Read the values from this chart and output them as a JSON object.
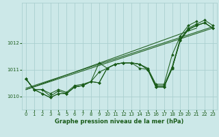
{
  "background_color": "#cce8e8",
  "grid_color": "#aacfcf",
  "line_color": "#1a5c1a",
  "title": "Graphe pression niveau de la mer (hPa)",
  "xlim": [
    -0.5,
    23.5
  ],
  "ylim": [
    1009.5,
    1013.5
  ],
  "yticks": [
    1010,
    1011,
    1012
  ],
  "xticks": [
    0,
    1,
    2,
    3,
    4,
    5,
    6,
    7,
    8,
    9,
    10,
    11,
    12,
    13,
    14,
    15,
    16,
    17,
    18,
    19,
    20,
    21,
    22,
    23
  ],
  "series": [
    [
      1010.65,
      1010.25,
      1010.25,
      1010.1,
      1010.25,
      1010.15,
      1010.4,
      1010.45,
      1010.55,
      1011.25,
      1011.05,
      1011.2,
      1011.25,
      1011.25,
      1011.2,
      1011.05,
      1010.45,
      1010.45,
      1011.55,
      1012.25,
      1012.65,
      1012.8,
      null,
      null
    ],
    [
      1010.65,
      1010.25,
      1010.25,
      1010.0,
      1010.2,
      1010.1,
      1010.35,
      1010.4,
      1010.55,
      1010.9,
      1011.05,
      1011.2,
      1011.25,
      1011.25,
      1011.2,
      1011.0,
      1010.4,
      1010.4,
      1011.1,
      1012.15,
      1012.55,
      1012.7,
      1012.85,
      1012.65
    ],
    [
      1010.65,
      1010.25,
      1010.1,
      1009.95,
      1010.1,
      1010.1,
      1010.35,
      1010.4,
      1010.55,
      1010.5,
      1011.05,
      1011.2,
      1011.25,
      1011.25,
      1011.2,
      1011.0,
      1010.35,
      1010.35,
      1011.05,
      1012.1,
      1012.5,
      1012.65,
      1012.75,
      1012.55
    ],
    [
      1010.65,
      1010.25,
      1010.1,
      1009.95,
      1010.1,
      1010.1,
      1010.35,
      1010.4,
      1010.55,
      1010.5,
      1011.05,
      1011.2,
      1011.25,
      1011.25,
      1011.05,
      1011.0,
      1010.35,
      1010.35,
      1011.05,
      1012.1,
      1012.5,
      1012.65,
      1012.75,
      1012.55
    ],
    [
      1010.65,
      1010.25,
      null,
      null,
      null,
      null,
      null,
      null,
      null,
      null,
      null,
      null,
      null,
      null,
      null,
      1011.0,
      1010.35,
      1010.35,
      1011.05,
      1012.1,
      1012.5,
      1012.65,
      1012.75,
      1012.55
    ]
  ],
  "trend_series": [
    [
      [
        0,
        23
      ],
      [
        1010.3,
        1012.6
      ]
    ],
    [
      [
        0,
        23
      ],
      [
        1010.25,
        1012.55
      ]
    ],
    [
      [
        0,
        21
      ],
      [
        1010.25,
        1012.55
      ]
    ]
  ]
}
